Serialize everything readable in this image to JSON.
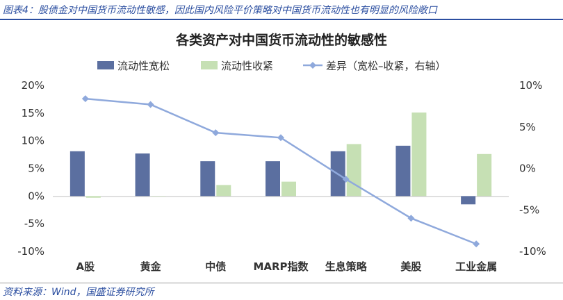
{
  "figure_caption": "图表4：股债金对中国货币流动性敏感，因此国内风险平价策略对中国货币流动性也有明显的风险敞口",
  "source": "资料来源：Wind，国盛证券研究所",
  "colors": {
    "loose": "#5b6fa0",
    "tight": "#c6e0b4",
    "diff": "#8fa9dc",
    "accent": "#2b4ea0"
  },
  "chart_data": {
    "type": "bar",
    "title": "各类资产对中国货币流动性的敏感性",
    "categories": [
      "A股",
      "黄金",
      "中债",
      "MARP指数",
      "生息策略",
      "美股",
      "工业金属"
    ],
    "series": [
      {
        "name": "流动性宽松",
        "type": "bar",
        "axis": "left",
        "values": [
          8.1,
          7.7,
          6.3,
          6.3,
          8.1,
          9.1,
          -1.5
        ]
      },
      {
        "name": "流动性收紧",
        "type": "bar",
        "axis": "left",
        "values": [
          -0.3,
          0.0,
          2.0,
          2.6,
          9.4,
          15.1,
          7.6
        ]
      },
      {
        "name": "差异（宽松–收紧，右轴）",
        "type": "line",
        "axis": "right",
        "values": [
          8.4,
          7.7,
          4.3,
          3.7,
          -1.3,
          -6.0,
          -9.1
        ]
      }
    ],
    "y_left": {
      "min": -10,
      "max": 20,
      "ticks": [
        "-10%",
        "-5%",
        "0%",
        "5%",
        "10%",
        "15%",
        "20%"
      ]
    },
    "y_right": {
      "min": -10,
      "max": 10,
      "ticks": [
        "-10%",
        "-5%",
        "0%",
        "5%",
        "10%"
      ]
    },
    "grid": false,
    "legend_position": "top"
  }
}
